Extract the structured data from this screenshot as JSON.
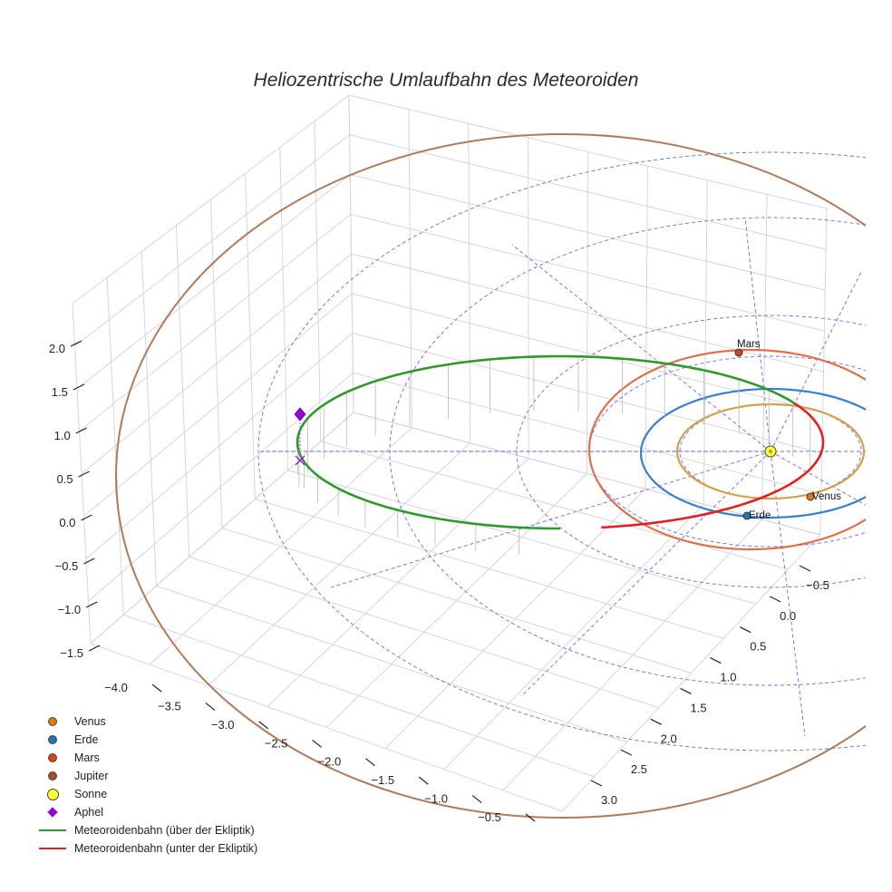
{
  "chart_data": {
    "type": "line",
    "title": "Heliozentrische Umlaufbahn des Meteoroiden",
    "x_ticks": [
      "−4.0",
      "−3.5",
      "−3.0",
      "−2.5",
      "−2.0",
      "−1.5",
      "−1.0",
      "−0.5"
    ],
    "y_ticks": [
      "−0.5",
      "0.0",
      "0.5",
      "1.0",
      "1.5",
      "2.0",
      "2.5",
      "3.0"
    ],
    "z_ticks": [
      "2.0",
      "1.5",
      "1.0",
      "0.5",
      "0.0",
      "−0.5",
      "−1.0",
      "−1.5"
    ],
    "xlim": [
      -4.0,
      -0.5
    ],
    "ylim": [
      -0.5,
      3.0
    ],
    "zlim": [
      -1.5,
      2.0
    ],
    "planets": [
      {
        "name": "Venus",
        "label": "Venus",
        "orbit_radius_au": 0.72,
        "color": "#d4a04a",
        "marker_color": "#e07b12"
      },
      {
        "name": "Erde",
        "label": "Erde",
        "orbit_radius_au": 1.0,
        "color": "#3a7fd0",
        "marker_color": "#1f77b4"
      },
      {
        "name": "Mars",
        "label": "Mars",
        "orbit_radius_au": 1.52,
        "color": "#e0704a",
        "marker_color": "#d2451e"
      },
      {
        "name": "Jupiter",
        "label": "",
        "orbit_radius_au": 5.2,
        "color": "#b07a5a",
        "marker_color": "#a0522d"
      }
    ],
    "series": [
      {
        "name": "Meteoroidenbahn (über der Ekliptik)",
        "color": "#2e9a2e"
      },
      {
        "name": "Meteoroidenbahn (unter der Ekliptik)",
        "color": "#e02020"
      }
    ],
    "legend": [
      {
        "label": "Venus",
        "kind": "dot",
        "color": "#e07b12"
      },
      {
        "label": "Erde",
        "kind": "dot",
        "color": "#1f77b4"
      },
      {
        "label": "Mars",
        "kind": "dot",
        "color": "#d2451e"
      },
      {
        "label": "Jupiter",
        "kind": "dot",
        "color": "#a0522d"
      },
      {
        "label": "Sonne",
        "kind": "sun",
        "color": "#ffff33"
      },
      {
        "label": "Aphel",
        "kind": "diamond",
        "color": "#9400d3"
      },
      {
        "label": "Meteoroidenbahn (über der Ekliptik)",
        "kind": "line",
        "color": "#2e9a2e"
      },
      {
        "label": "Meteoroidenbahn (unter der Ekliptik)",
        "kind": "line",
        "color": "#e02020"
      }
    ],
    "legend_position": "bottom-left",
    "grid": true
  }
}
